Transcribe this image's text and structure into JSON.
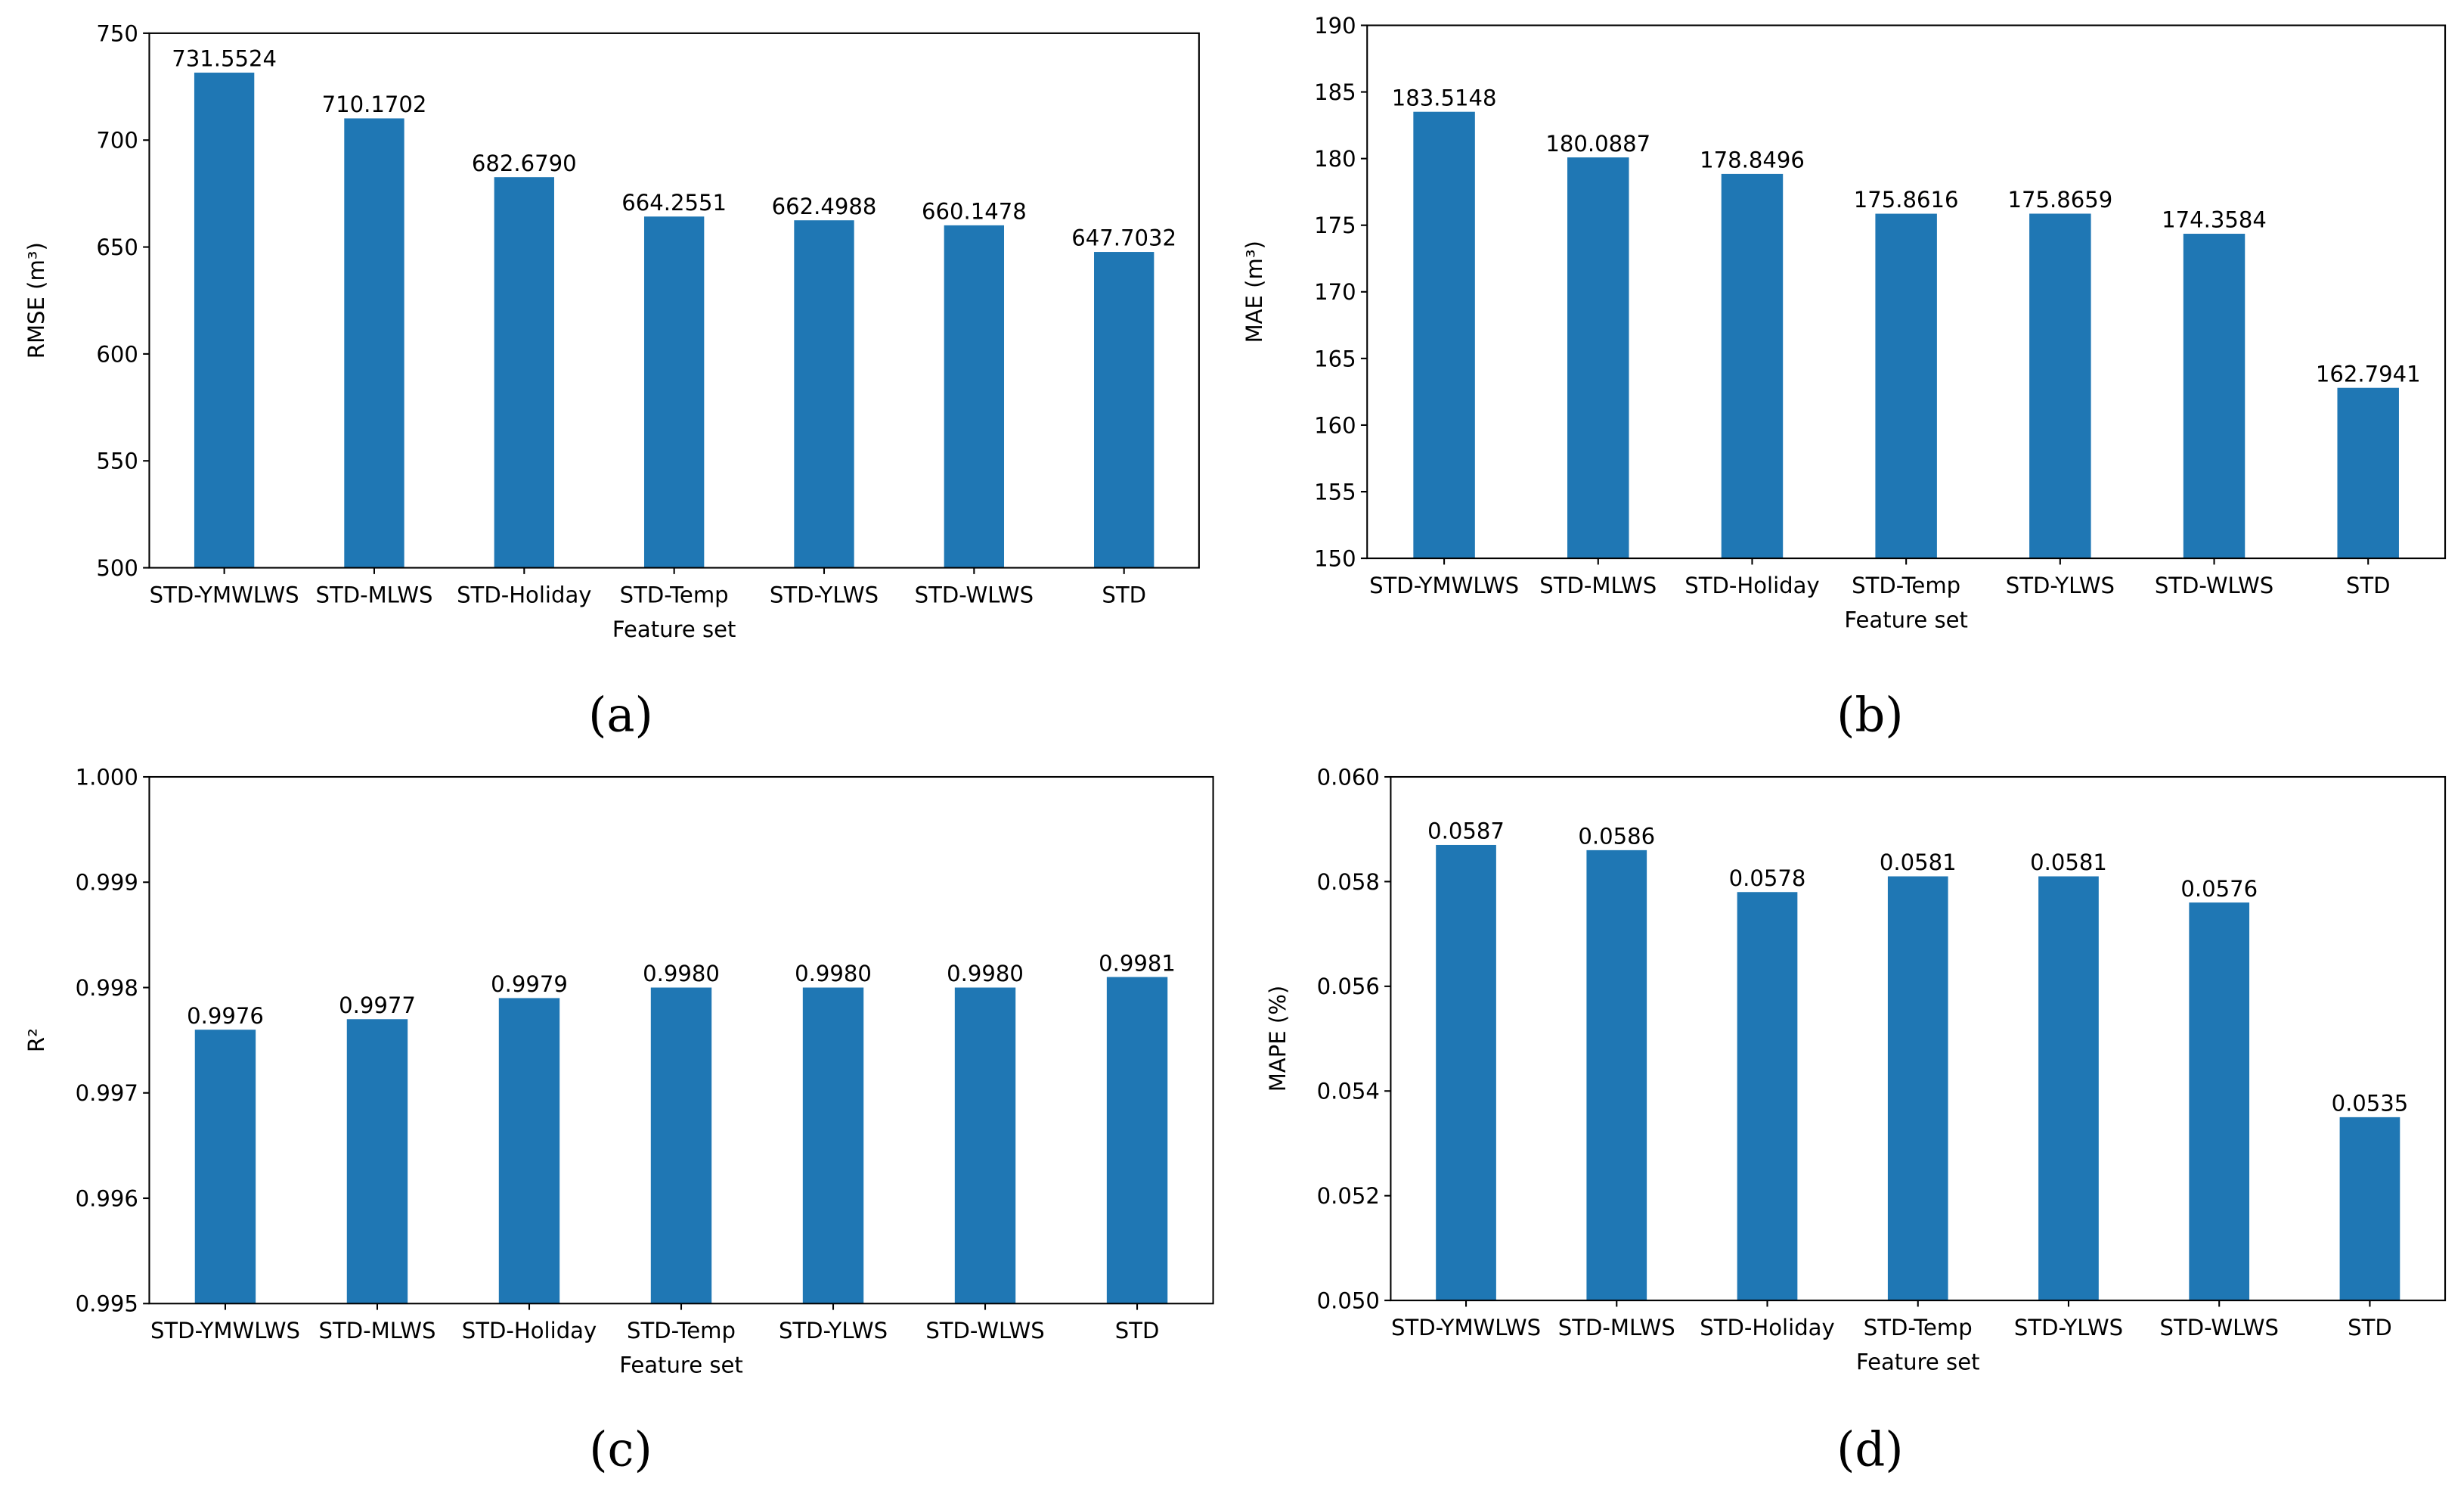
{
  "chart_data": [
    {
      "type": "bar",
      "caption": "(a)",
      "xlabel": "Feature set",
      "ylabel": "RMSE (m³)",
      "color": "#1f77b4",
      "categories": [
        "STD-YMWLWS",
        "STD-MLWS",
        "STD-Holiday",
        "STD-Temp",
        "STD-YLWS",
        "STD-WLWS",
        "STD"
      ],
      "values": [
        731.5524,
        710.1702,
        682.679,
        664.2551,
        662.4988,
        660.1478,
        647.7032
      ],
      "value_labels": [
        "731.5524",
        "710.1702",
        "682.6790",
        "664.2551",
        "662.4988",
        "660.1478",
        "647.7032"
      ],
      "ylim": [
        500,
        750
      ],
      "yticks": [
        500,
        550,
        600,
        650,
        700,
        750
      ]
    },
    {
      "type": "bar",
      "caption": "(b)",
      "xlabel": "Feature set",
      "ylabel": "MAE (m³)",
      "color": "#1f77b4",
      "categories": [
        "STD-YMWLWS",
        "STD-MLWS",
        "STD-Holiday",
        "STD-Temp",
        "STD-YLWS",
        "STD-WLWS",
        "STD"
      ],
      "values": [
        183.5148,
        180.0887,
        178.8496,
        175.8616,
        175.8659,
        174.3584,
        162.7941
      ],
      "value_labels": [
        "183.5148",
        "180.0887",
        "178.8496",
        "175.8616",
        "175.8659",
        "174.3584",
        "162.7941"
      ],
      "ylim": [
        150,
        190
      ],
      "yticks": [
        150,
        155,
        160,
        165,
        170,
        175,
        180,
        185,
        190
      ]
    },
    {
      "type": "bar",
      "caption": "(c)",
      "xlabel": "Feature set",
      "ylabel": "R²",
      "color": "#1f77b4",
      "categories": [
        "STD-YMWLWS",
        "STD-MLWS",
        "STD-Holiday",
        "STD-Temp",
        "STD-YLWS",
        "STD-WLWS",
        "STD"
      ],
      "values": [
        0.9976,
        0.9977,
        0.9979,
        0.998,
        0.998,
        0.998,
        0.9981
      ],
      "value_labels": [
        "0.9976",
        "0.9977",
        "0.9979",
        "0.9980",
        "0.9980",
        "0.9980",
        "0.9981"
      ],
      "ylim": [
        0.995,
        1.0
      ],
      "yticks": [
        0.995,
        0.996,
        0.997,
        0.998,
        0.999,
        {
          "value": 1.0,
          "label": "1.000"
        }
      ]
    },
    {
      "type": "bar",
      "caption": "(d)",
      "xlabel": "Feature set",
      "ylabel": "MAPE (%)",
      "color": "#1f77b4",
      "categories": [
        "STD-YMWLWS",
        "STD-MLWS",
        "STD-Holiday",
        "STD-Temp",
        "STD-YLWS",
        "STD-WLWS",
        "STD"
      ],
      "values": [
        0.0587,
        0.0586,
        0.0578,
        0.0581,
        0.0581,
        0.0576,
        0.0535
      ],
      "value_labels": [
        "0.0587",
        "0.0586",
        "0.0578",
        "0.0581",
        "0.0581",
        "0.0576",
        "0.0535"
      ],
      "ylim": [
        0.05,
        0.06
      ],
      "yticks": [
        {
          "value": 0.05,
          "label": "0.050"
        },
        0.052,
        0.054,
        0.056,
        0.058,
        {
          "value": 0.06,
          "label": "0.060"
        }
      ]
    }
  ]
}
